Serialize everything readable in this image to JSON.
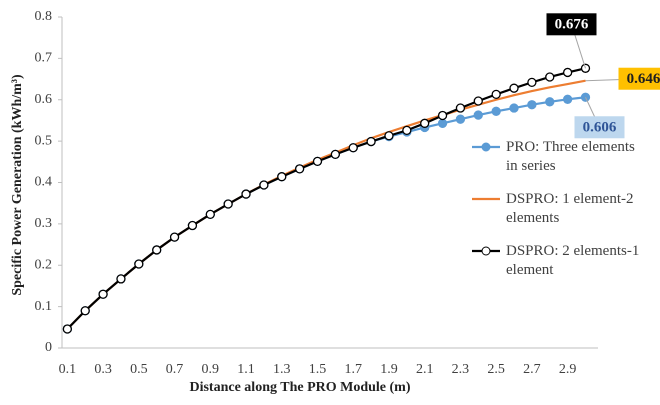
{
  "chart_data": {
    "type": "line",
    "y_label": "Specific Power Generation (kWh/m³)",
    "x_label": "Distance along The PRO Module (m)",
    "categories": [
      "0.1",
      null,
      "0.3",
      null,
      "0.5",
      null,
      "0.7",
      null,
      "0.9",
      null,
      "1.1",
      null,
      "1.3",
      null,
      "1.5",
      null,
      "1.7",
      null,
      "1.9",
      null,
      "2.1",
      null,
      "2.3",
      null,
      "2.5",
      null,
      "2.7",
      null,
      "2.9",
      null
    ],
    "ylim": [
      0,
      0.8
    ],
    "yticks": [
      0,
      0.1,
      0.2,
      0.3,
      0.4,
      0.5,
      0.6,
      0.7,
      0.8
    ],
    "legend": "right",
    "series": [
      {
        "name": "PRO: Three elements in series",
        "color": "#5b9bd5",
        "marker": "filled-circle",
        "values": [
          0.046,
          0.09,
          0.13,
          0.167,
          0.203,
          0.237,
          0.268,
          0.296,
          0.323,
          0.348,
          0.372,
          0.394,
          0.414,
          0.433,
          0.451,
          0.468,
          0.484,
          0.499,
          0.511,
          0.522,
          0.533,
          0.543,
          0.553,
          0.563,
          0.572,
          0.58,
          0.588,
          0.595,
          0.601,
          0.606
        ]
      },
      {
        "name": "DSPRO: 1 element-2 elements",
        "color": "#ed7d31",
        "marker": "none",
        "values": [
          0.046,
          0.09,
          0.13,
          0.167,
          0.203,
          0.237,
          0.268,
          0.296,
          0.323,
          0.348,
          0.372,
          0.395,
          0.416,
          0.436,
          0.455,
          0.472,
          0.49,
          0.507,
          0.522,
          0.536,
          0.55,
          0.563,
          0.576,
          0.588,
          0.6,
          0.611,
          0.621,
          0.63,
          0.638,
          0.646
        ]
      },
      {
        "name": "DSPRO: 2 elements-1 element",
        "color": "#000000",
        "marker": "open-circle",
        "values": [
          0.046,
          0.09,
          0.13,
          0.167,
          0.203,
          0.237,
          0.268,
          0.296,
          0.323,
          0.348,
          0.372,
          0.394,
          0.414,
          0.433,
          0.451,
          0.468,
          0.484,
          0.499,
          0.513,
          0.526,
          0.543,
          0.562,
          0.58,
          0.597,
          0.613,
          0.628,
          0.642,
          0.655,
          0.666,
          0.676
        ]
      }
    ]
  }
}
